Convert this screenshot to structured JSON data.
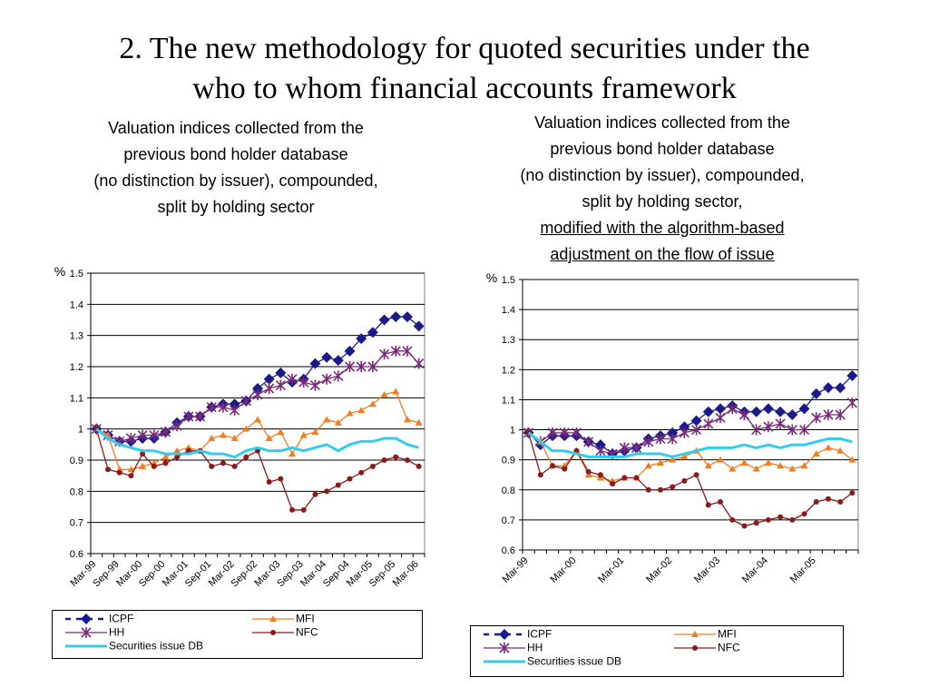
{
  "page": {
    "title_line1": "2. The new methodology for quoted securities under the",
    "title_line2": "who to whom financial accounts framework",
    "left_subtitle": [
      "Valuation indices collected from the",
      "previous bond holder database",
      "(no distinction by issuer), compounded,",
      "split by holding sector"
    ],
    "right_subtitle": [
      "Valuation indices collected from the",
      "previous bond holder database",
      "(no distinction by issuer), compounded,",
      "split by holding sector,"
    ],
    "right_subtitle_underlined": [
      "modified with the algorithm-based ",
      "adjustment on the flow of issue"
    ]
  },
  "colors": {
    "ICPF": "#1a1a8c",
    "HH": "#7b2a7b",
    "MFI": "#f07d1e",
    "NFC": "#8b1a1a",
    "Securities issue DB": "#33ccee"
  },
  "chart_data": [
    {
      "type": "line",
      "ylabel": "%",
      "ylim": [
        0.6,
        1.5
      ],
      "yticks": [
        "0.6",
        "0.7",
        "0.8",
        "0.9",
        "1",
        "1.1",
        "1.2",
        "1.3",
        "1.4",
        "1.5"
      ],
      "grid": true,
      "legend_position": "bottom",
      "x_tick_labels": [
        "Mar-99",
        "Sep-99",
        "Mar-00",
        "Sep-00",
        "Mar-01",
        "Sep-01",
        "Mar-02",
        "Sep-02",
        "Mar-03",
        "Sep-03",
        "Mar-04",
        "Sep-04",
        "Mar-05",
        "Sep-05",
        "Mar-06"
      ],
      "x_start": "Mar-99",
      "x_end": "Jun-06",
      "x_frequency": "quarterly",
      "series": [
        {
          "name": "ICPF",
          "marker": "diamond",
          "values": [
            1.0,
            0.98,
            0.96,
            0.96,
            0.97,
            0.97,
            0.99,
            1.02,
            1.04,
            1.04,
            1.07,
            1.08,
            1.08,
            1.09,
            1.13,
            1.16,
            1.18,
            1.15,
            1.16,
            1.21,
            1.23,
            1.22,
            1.25,
            1.29,
            1.31,
            1.35,
            1.36,
            1.36,
            1.33
          ]
        },
        {
          "name": "HH",
          "marker": "star",
          "values": [
            1.0,
            0.98,
            0.96,
            0.97,
            0.98,
            0.98,
            0.99,
            1.01,
            1.04,
            1.04,
            1.07,
            1.07,
            1.06,
            1.09,
            1.11,
            1.13,
            1.14,
            1.16,
            1.15,
            1.14,
            1.16,
            1.17,
            1.2,
            1.2,
            1.2,
            1.24,
            1.25,
            1.25,
            1.21
          ]
        },
        {
          "name": "MFI",
          "marker": "triangle",
          "values": [
            1.0,
            0.98,
            0.87,
            0.87,
            0.88,
            0.89,
            0.91,
            0.93,
            0.94,
            0.93,
            0.97,
            0.98,
            0.97,
            1.0,
            1.03,
            0.97,
            0.99,
            0.92,
            0.98,
            0.99,
            1.03,
            1.02,
            1.05,
            1.06,
            1.08,
            1.11,
            1.12,
            1.03,
            1.02
          ]
        },
        {
          "name": "NFC",
          "marker": "circle",
          "values": [
            1.0,
            0.87,
            0.86,
            0.85,
            0.92,
            0.88,
            0.89,
            0.91,
            0.93,
            0.93,
            0.88,
            0.89,
            0.88,
            0.91,
            0.93,
            0.83,
            0.84,
            0.74,
            0.74,
            0.79,
            0.8,
            0.82,
            0.84,
            0.86,
            0.88,
            0.9,
            0.91,
            0.9,
            0.88
          ]
        },
        {
          "name": "Securities issue DB",
          "marker": "none",
          "values": [
            1.0,
            0.97,
            0.95,
            0.94,
            0.93,
            0.93,
            0.92,
            0.92,
            0.92,
            0.93,
            0.92,
            0.92,
            0.91,
            0.93,
            0.94,
            0.93,
            0.93,
            0.94,
            0.93,
            0.94,
            0.95,
            0.93,
            0.95,
            0.96,
            0.96,
            0.97,
            0.97,
            0.95,
            0.94
          ]
        }
      ]
    },
    {
      "type": "line",
      "ylabel": "%",
      "ylim": [
        0.6,
        1.5
      ],
      "yticks": [
        "0.6",
        "0.7",
        "0.8",
        "0.9",
        "1",
        "1.1",
        "1.2",
        "1.3",
        "1.4",
        "1.5"
      ],
      "grid": true,
      "legend_position": "bottom",
      "x_tick_labels": [
        "Mar-99",
        "Mar-00",
        "Mar-01",
        "Mar-02",
        "Mar-03",
        "Mar-04",
        "Mar-05"
      ],
      "x_start": "Mar-99",
      "x_end": "Dec-05",
      "x_frequency": "quarterly",
      "series": [
        {
          "name": "ICPF",
          "marker": "diamond",
          "values": [
            0.99,
            0.95,
            0.98,
            0.98,
            0.98,
            0.96,
            0.95,
            0.92,
            0.93,
            0.94,
            0.97,
            0.98,
            0.99,
            1.01,
            1.03,
            1.06,
            1.07,
            1.08,
            1.06,
            1.06,
            1.07,
            1.06,
            1.05,
            1.07,
            1.12,
            1.14,
            1.14,
            1.18
          ]
        },
        {
          "name": "HH",
          "marker": "star",
          "values": [
            0.99,
            0.96,
            0.99,
            0.99,
            0.99,
            0.96,
            0.93,
            0.92,
            0.94,
            0.94,
            0.96,
            0.97,
            0.97,
            0.99,
            1.0,
            1.02,
            1.04,
            1.07,
            1.05,
            1.0,
            1.01,
            1.02,
            1.0,
            1.0,
            1.04,
            1.05,
            1.05,
            1.09
          ]
        },
        {
          "name": "MFI",
          "marker": "triangle",
          "values": [
            0.99,
            0.96,
            0.88,
            0.88,
            0.93,
            0.85,
            0.84,
            0.83,
            0.84,
            0.84,
            0.88,
            0.89,
            0.9,
            0.91,
            0.93,
            0.88,
            0.9,
            0.87,
            0.89,
            0.87,
            0.89,
            0.88,
            0.87,
            0.88,
            0.92,
            0.94,
            0.93,
            0.9
          ]
        },
        {
          "name": "NFC",
          "marker": "circle",
          "values": [
            0.99,
            0.85,
            0.88,
            0.87,
            0.93,
            0.86,
            0.85,
            0.82,
            0.84,
            0.84,
            0.8,
            0.8,
            0.81,
            0.83,
            0.85,
            0.75,
            0.76,
            0.7,
            0.68,
            0.69,
            0.7,
            0.71,
            0.7,
            0.72,
            0.76,
            0.77,
            0.76,
            0.79
          ]
        },
        {
          "name": "Securities issue DB",
          "marker": "none",
          "values": [
            0.99,
            0.96,
            0.93,
            0.93,
            0.92,
            0.91,
            0.91,
            0.91,
            0.91,
            0.92,
            0.92,
            0.92,
            0.91,
            0.92,
            0.93,
            0.94,
            0.94,
            0.94,
            0.95,
            0.94,
            0.95,
            0.94,
            0.95,
            0.95,
            0.96,
            0.97,
            0.97,
            0.96
          ]
        }
      ]
    }
  ]
}
